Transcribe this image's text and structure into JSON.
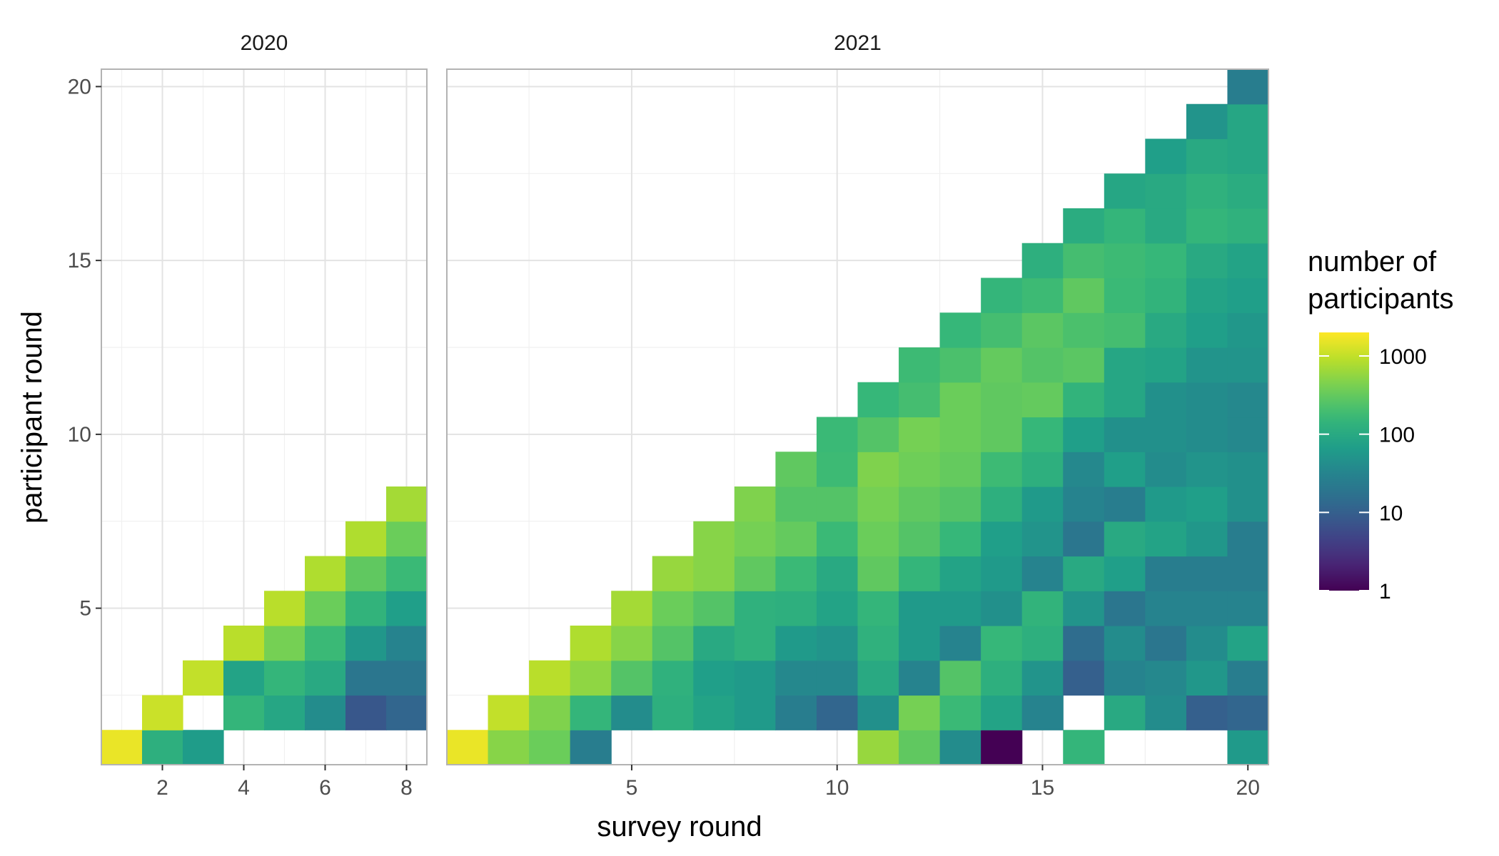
{
  "chart_data": {
    "type": "heatmap",
    "xlabel": "survey round",
    "ylabel": "participant round",
    "y_ticks": [
      5,
      10,
      15,
      20
    ],
    "y_tick_labels": [
      "5",
      "10",
      "15",
      "20"
    ],
    "ylim": [
      0.5,
      20.5
    ],
    "color_scale": {
      "title": [
        "number of",
        "participants"
      ],
      "scale": "log10",
      "range": [
        1,
        2000
      ],
      "ticks": [
        1,
        10,
        100,
        1000
      ],
      "tick_labels": [
        "1",
        "10",
        "100",
        "1000"
      ],
      "colormap": "viridis"
    },
    "panels": [
      {
        "name": "2020",
        "xlim": [
          0.5,
          8.5
        ],
        "x_ticks": [
          2,
          4,
          6,
          8
        ],
        "x_tick_labels": [
          "2",
          "4",
          "6",
          "8"
        ],
        "cells": [
          [
            1,
            1,
            1600
          ],
          [
            2,
            1,
            120
          ],
          [
            3,
            1,
            65
          ],
          [
            2,
            2,
            1100
          ],
          [
            4,
            2,
            150
          ],
          [
            5,
            2,
            90
          ],
          [
            6,
            2,
            40
          ],
          [
            7,
            2,
            8
          ],
          [
            8,
            2,
            12
          ],
          [
            3,
            3,
            1000
          ],
          [
            4,
            3,
            80
          ],
          [
            5,
            3,
            150
          ],
          [
            6,
            3,
            100
          ],
          [
            7,
            3,
            20
          ],
          [
            8,
            3,
            20
          ],
          [
            4,
            4,
            900
          ],
          [
            5,
            4,
            400
          ],
          [
            6,
            4,
            170
          ],
          [
            7,
            4,
            55
          ],
          [
            8,
            4,
            30
          ],
          [
            5,
            5,
            900
          ],
          [
            6,
            5,
            350
          ],
          [
            7,
            5,
            140
          ],
          [
            8,
            5,
            70
          ],
          [
            6,
            6,
            800
          ],
          [
            7,
            6,
            300
          ],
          [
            8,
            6,
            170
          ],
          [
            7,
            7,
            800
          ],
          [
            8,
            7,
            350
          ],
          [
            8,
            8,
            700
          ]
        ]
      },
      {
        "name": "2021",
        "xlim": [
          0.5,
          20.5
        ],
        "x_ticks": [
          5,
          10,
          15,
          20
        ],
        "x_tick_labels": [
          "5",
          "10",
          "15",
          "20"
        ],
        "cells": [
          [
            1,
            1,
            1600
          ],
          [
            2,
            1,
            500
          ],
          [
            3,
            1,
            350
          ],
          [
            4,
            1,
            25
          ],
          [
            11,
            1,
            600
          ],
          [
            12,
            1,
            300
          ],
          [
            13,
            1,
            40
          ],
          [
            14,
            1,
            1
          ],
          [
            16,
            1,
            150
          ],
          [
            20,
            1,
            60
          ],
          [
            2,
            2,
            1000
          ],
          [
            3,
            2,
            450
          ],
          [
            4,
            2,
            150
          ],
          [
            5,
            2,
            40
          ],
          [
            6,
            2,
            120
          ],
          [
            7,
            2,
            80
          ],
          [
            8,
            2,
            60
          ],
          [
            9,
            2,
            25
          ],
          [
            10,
            2,
            12
          ],
          [
            11,
            2,
            45
          ],
          [
            12,
            2,
            400
          ],
          [
            13,
            2,
            170
          ],
          [
            14,
            2,
            80
          ],
          [
            15,
            2,
            30
          ],
          [
            17,
            2,
            100
          ],
          [
            18,
            2,
            40
          ],
          [
            19,
            2,
            10
          ],
          [
            20,
            2,
            12
          ],
          [
            3,
            3,
            900
          ],
          [
            4,
            3,
            550
          ],
          [
            5,
            3,
            250
          ],
          [
            6,
            3,
            130
          ],
          [
            7,
            3,
            70
          ],
          [
            8,
            3,
            60
          ],
          [
            9,
            3,
            35
          ],
          [
            10,
            3,
            35
          ],
          [
            11,
            3,
            100
          ],
          [
            12,
            3,
            30
          ],
          [
            13,
            3,
            250
          ],
          [
            14,
            3,
            120
          ],
          [
            15,
            3,
            50
          ],
          [
            16,
            3,
            10
          ],
          [
            17,
            3,
            30
          ],
          [
            18,
            3,
            35
          ],
          [
            19,
            3,
            55
          ],
          [
            20,
            3,
            25
          ],
          [
            4,
            4,
            800
          ],
          [
            5,
            4,
            500
          ],
          [
            6,
            4,
            250
          ],
          [
            7,
            4,
            100
          ],
          [
            8,
            4,
            130
          ],
          [
            9,
            4,
            60
          ],
          [
            10,
            4,
            50
          ],
          [
            11,
            4,
            130
          ],
          [
            12,
            4,
            60
          ],
          [
            13,
            4,
            30
          ],
          [
            14,
            4,
            160
          ],
          [
            15,
            4,
            120
          ],
          [
            16,
            4,
            15
          ],
          [
            17,
            4,
            40
          ],
          [
            18,
            4,
            20
          ],
          [
            19,
            4,
            40
          ],
          [
            20,
            4,
            80
          ],
          [
            5,
            5,
            700
          ],
          [
            6,
            5,
            350
          ],
          [
            7,
            5,
            250
          ],
          [
            8,
            5,
            130
          ],
          [
            9,
            5,
            120
          ],
          [
            10,
            5,
            80
          ],
          [
            11,
            5,
            150
          ],
          [
            12,
            5,
            60
          ],
          [
            13,
            5,
            60
          ],
          [
            14,
            5,
            45
          ],
          [
            15,
            5,
            140
          ],
          [
            16,
            5,
            50
          ],
          [
            17,
            5,
            20
          ],
          [
            18,
            5,
            30
          ],
          [
            19,
            5,
            30
          ],
          [
            20,
            5,
            30
          ],
          [
            6,
            6,
            600
          ],
          [
            7,
            6,
            500
          ],
          [
            8,
            6,
            300
          ],
          [
            9,
            6,
            170
          ],
          [
            10,
            6,
            100
          ],
          [
            11,
            6,
            300
          ],
          [
            12,
            6,
            150
          ],
          [
            13,
            6,
            80
          ],
          [
            14,
            6,
            60
          ],
          [
            15,
            6,
            30
          ],
          [
            16,
            6,
            100
          ],
          [
            17,
            6,
            70
          ],
          [
            18,
            6,
            25
          ],
          [
            19,
            6,
            25
          ],
          [
            20,
            6,
            25
          ],
          [
            7,
            7,
            500
          ],
          [
            8,
            7,
            400
          ],
          [
            9,
            7,
            320
          ],
          [
            10,
            7,
            170
          ],
          [
            11,
            7,
            350
          ],
          [
            12,
            7,
            250
          ],
          [
            13,
            7,
            160
          ],
          [
            14,
            7,
            70
          ],
          [
            15,
            7,
            50
          ],
          [
            16,
            7,
            20
          ],
          [
            17,
            7,
            100
          ],
          [
            18,
            7,
            80
          ],
          [
            19,
            7,
            55
          ],
          [
            20,
            7,
            25
          ],
          [
            8,
            8,
            450
          ],
          [
            9,
            8,
            250
          ],
          [
            10,
            8,
            250
          ],
          [
            11,
            8,
            400
          ],
          [
            12,
            8,
            300
          ],
          [
            13,
            8,
            250
          ],
          [
            14,
            8,
            120
          ],
          [
            15,
            8,
            60
          ],
          [
            16,
            8,
            30
          ],
          [
            17,
            8,
            25
          ],
          [
            18,
            8,
            60
          ],
          [
            19,
            8,
            70
          ],
          [
            20,
            8,
            45
          ],
          [
            9,
            9,
            300
          ],
          [
            10,
            9,
            180
          ],
          [
            11,
            9,
            450
          ],
          [
            12,
            9,
            370
          ],
          [
            13,
            9,
            320
          ],
          [
            14,
            9,
            180
          ],
          [
            15,
            9,
            120
          ],
          [
            16,
            9,
            35
          ],
          [
            17,
            9,
            70
          ],
          [
            18,
            9,
            40
          ],
          [
            19,
            9,
            50
          ],
          [
            20,
            9,
            45
          ],
          [
            10,
            10,
            170
          ],
          [
            11,
            10,
            250
          ],
          [
            12,
            10,
            400
          ],
          [
            13,
            10,
            350
          ],
          [
            14,
            10,
            300
          ],
          [
            15,
            10,
            160
          ],
          [
            16,
            10,
            70
          ],
          [
            17,
            10,
            45
          ],
          [
            18,
            10,
            45
          ],
          [
            19,
            10,
            40
          ],
          [
            20,
            10,
            35
          ],
          [
            11,
            11,
            160
          ],
          [
            12,
            11,
            200
          ],
          [
            13,
            11,
            350
          ],
          [
            14,
            11,
            300
          ],
          [
            15,
            11,
            320
          ],
          [
            16,
            11,
            140
          ],
          [
            17,
            11,
            90
          ],
          [
            18,
            11,
            45
          ],
          [
            19,
            11,
            40
          ],
          [
            20,
            11,
            35
          ],
          [
            12,
            12,
            180
          ],
          [
            13,
            12,
            220
          ],
          [
            14,
            12,
            320
          ],
          [
            15,
            12,
            250
          ],
          [
            16,
            12,
            280
          ],
          [
            17,
            12,
            90
          ],
          [
            18,
            12,
            80
          ],
          [
            19,
            12,
            50
          ],
          [
            20,
            12,
            50
          ],
          [
            13,
            13,
            160
          ],
          [
            14,
            13,
            200
          ],
          [
            15,
            13,
            280
          ],
          [
            16,
            13,
            220
          ],
          [
            17,
            13,
            200
          ],
          [
            18,
            13,
            100
          ],
          [
            19,
            13,
            70
          ],
          [
            20,
            13,
            55
          ],
          [
            14,
            14,
            150
          ],
          [
            15,
            14,
            180
          ],
          [
            16,
            14,
            300
          ],
          [
            17,
            14,
            170
          ],
          [
            18,
            14,
            140
          ],
          [
            19,
            14,
            80
          ],
          [
            20,
            14,
            70
          ],
          [
            15,
            15,
            120
          ],
          [
            16,
            15,
            200
          ],
          [
            17,
            15,
            180
          ],
          [
            18,
            15,
            160
          ],
          [
            19,
            15,
            100
          ],
          [
            20,
            15,
            80
          ],
          [
            16,
            16,
            110
          ],
          [
            17,
            16,
            150
          ],
          [
            18,
            16,
            100
          ],
          [
            19,
            16,
            150
          ],
          [
            20,
            16,
            130
          ],
          [
            17,
            17,
            90
          ],
          [
            18,
            17,
            100
          ],
          [
            19,
            17,
            130
          ],
          [
            20,
            17,
            110
          ],
          [
            18,
            18,
            70
          ],
          [
            19,
            18,
            100
          ],
          [
            20,
            18,
            90
          ],
          [
            19,
            19,
            50
          ],
          [
            20,
            19,
            90
          ],
          [
            20,
            20,
            25
          ]
        ]
      }
    ]
  }
}
